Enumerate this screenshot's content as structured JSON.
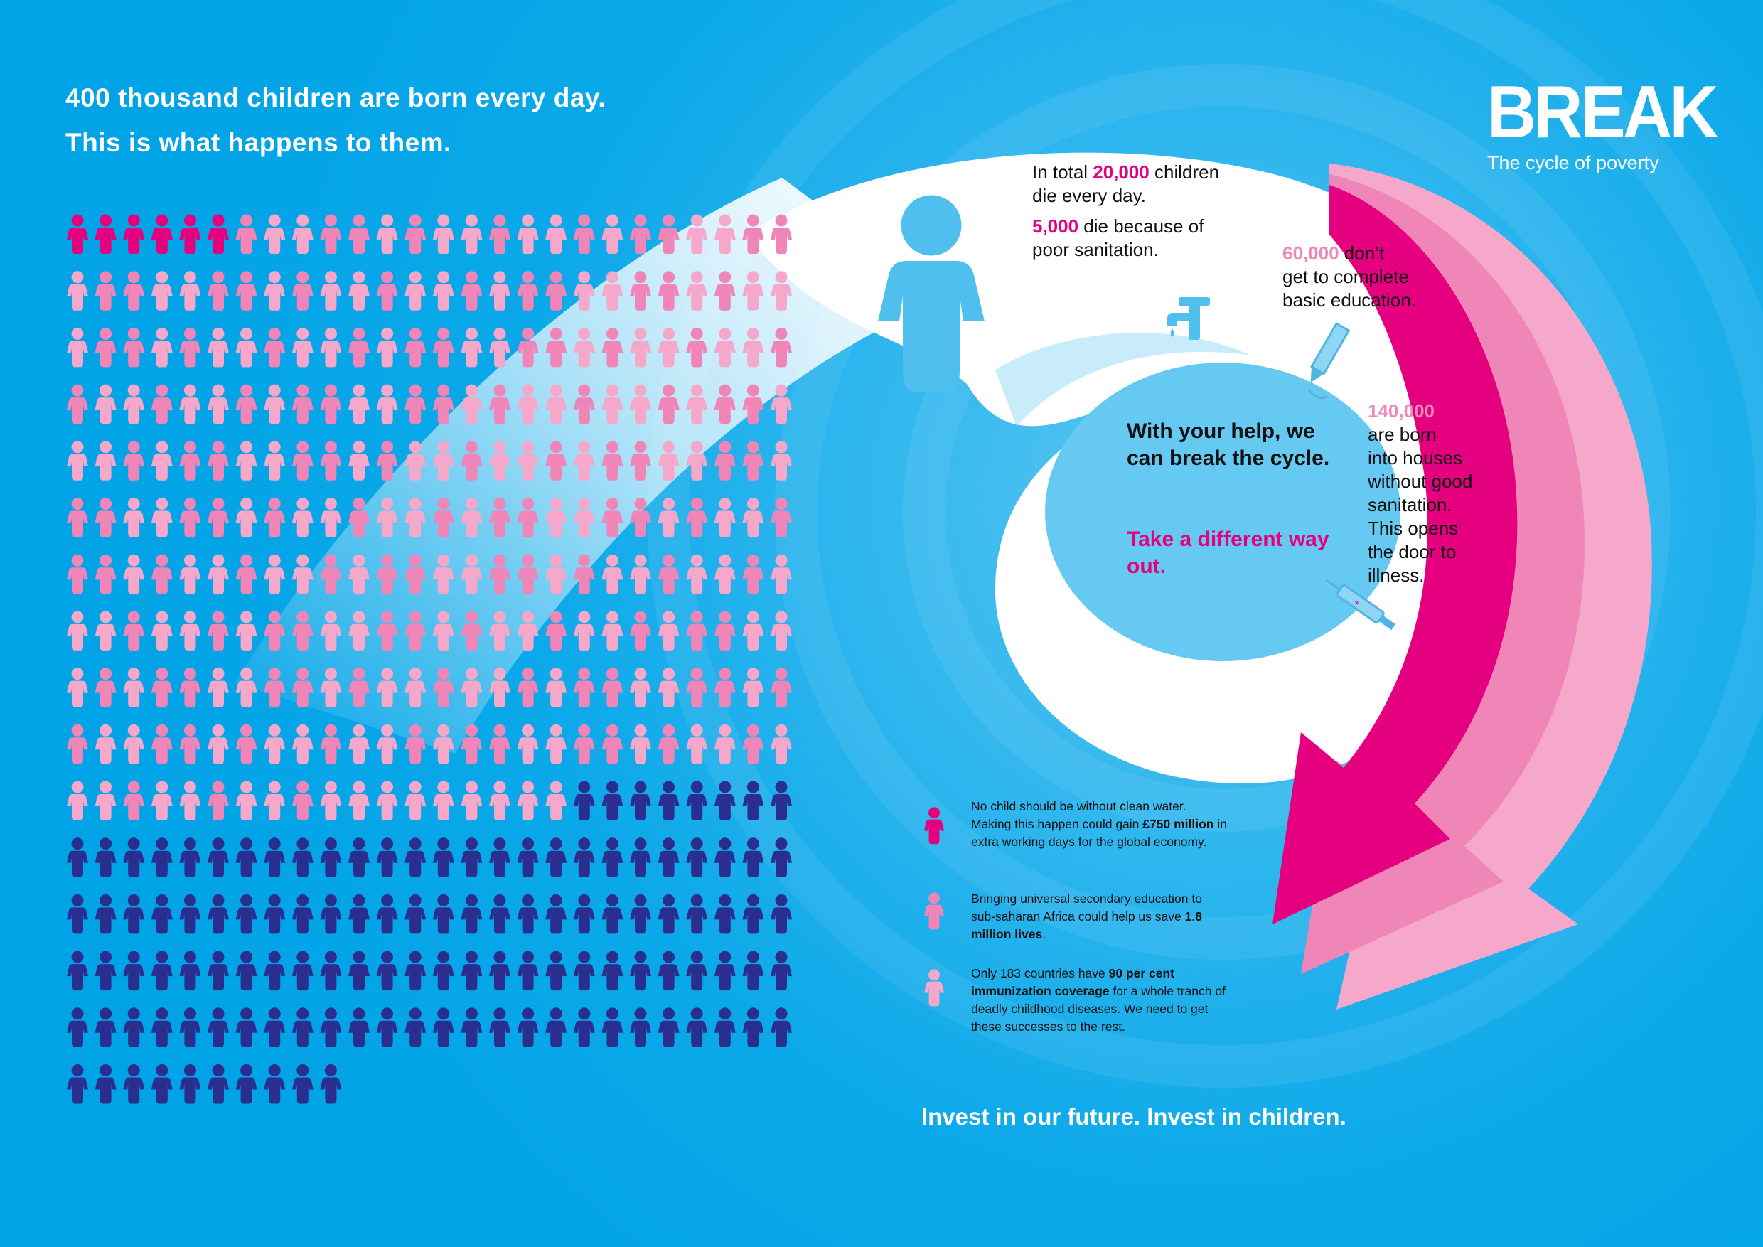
{
  "header": {
    "line1": "400 thousand children are born every day.",
    "line2": "This is what happens to them."
  },
  "logo": {
    "word": "BREAK",
    "subtitle": "The cycle of poverty"
  },
  "stats": {
    "die": {
      "pre": "In total ",
      "num": "20,000",
      "post": " children",
      "line2": "die every day."
    },
    "sanitation_die": {
      "num": "5,000",
      "post": " die because of",
      "line2": "poor sanitation."
    },
    "education": {
      "num": "60,000",
      "post": " don’t",
      "line2": "get to complete",
      "line3": "basic education."
    },
    "houses": {
      "num": "140,000",
      "lines": [
        "are born",
        "into houses",
        "without good",
        "sanitation.",
        "This opens",
        "the door to",
        "illness."
      ]
    }
  },
  "center": {
    "msg": "With your help, we can break the cycle.",
    "cta": "Take a different way out."
  },
  "notes": [
    {
      "a": "No child should be without clean water. Making this happen could gain ",
      "b": "£750 million",
      "c": " in extra working days for the global economy."
    },
    {
      "a": "Bringing universal secondary education to sub-saharan Africa could help us save ",
      "b": "1.8 million lives",
      "c": "."
    },
    {
      "a": "Only 183 countries have ",
      "b": "90 per cent immunization coverage",
      "c": " for a whole tranch of deadly childhood diseases. We need to get these successes to the rest."
    }
  ],
  "footer": "Invest in our future. Invest in children.",
  "colors": {
    "background": "#00a3e6",
    "magenta": "#e4007f",
    "pink": "#f086b8",
    "light_pink": "#f6a8ca",
    "navy": "#2a2f8f",
    "light_blue": "#66c9f2"
  },
  "icons": [
    "child-figure-icon",
    "tap-icon",
    "pencil-icon",
    "syringe-icon"
  ]
}
